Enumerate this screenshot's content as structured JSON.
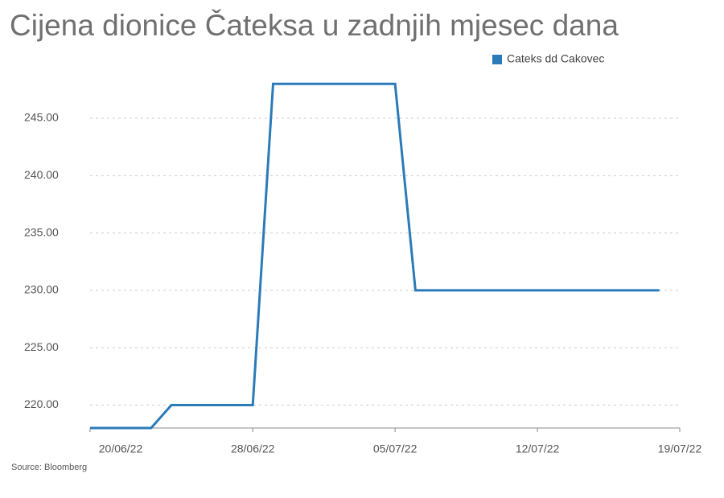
{
  "chart_data": {
    "type": "line",
    "title": "Cijena dionice Čateksa u zadnjih mjesec dana",
    "source": "Source: Bloomberg",
    "x": [
      "2022-06-20",
      "2022-06-23",
      "2022-06-24",
      "2022-06-28",
      "2022-06-29",
      "2022-07-05",
      "2022-07-06",
      "2022-07-18"
    ],
    "series": [
      {
        "name": "Cateks dd Cakovec",
        "color": "#2b7bb9",
        "values": [
          218,
          218,
          220,
          220,
          248,
          248,
          230,
          230
        ]
      }
    ],
    "xlim": [
      "2022-06-20",
      "2022-07-19"
    ],
    "xticks": [
      {
        "value": "2022-06-20",
        "label": "20/06/22"
      },
      {
        "value": "2022-06-28",
        "label": "28/06/22"
      },
      {
        "value": "2022-07-05",
        "label": "05/07/22"
      },
      {
        "value": "2022-07-12",
        "label": "12/07/22"
      },
      {
        "value": "2022-07-19",
        "label": "19/07/22"
      }
    ],
    "ylim": [
      218,
      249
    ],
    "yticks": [
      {
        "value": 220,
        "label": "220.00"
      },
      {
        "value": 225,
        "label": "225.00"
      },
      {
        "value": 230,
        "label": "230.00"
      },
      {
        "value": 235,
        "label": "235.00"
      },
      {
        "value": 240,
        "label": "240.00"
      },
      {
        "value": 245,
        "label": "245.00"
      }
    ],
    "grid": true,
    "legend": "top-right"
  }
}
